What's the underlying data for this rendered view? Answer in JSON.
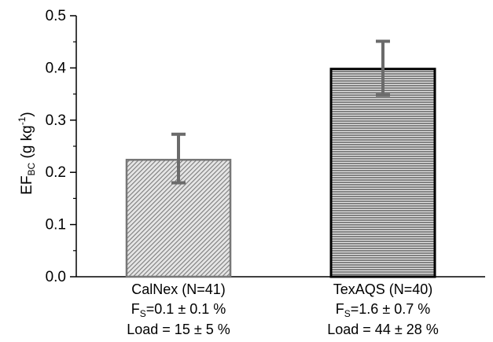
{
  "chart_data": {
    "type": "bar",
    "categories": [
      "CalNex (N=41)",
      "TexAQS (N=40)"
    ],
    "values": [
      0.224,
      0.398
    ],
    "error_upper": [
      0.273,
      0.451
    ],
    "error_lower": [
      0.18,
      0.348
    ],
    "bar_colors": [
      "#8a8a8a",
      "#4a4a4a"
    ],
    "bar_outline_colors": [
      "#777777",
      "#000000"
    ],
    "error_bar_color": "#6b6b6b",
    "category_sublabels": [
      [
        "F",
        "S",
        "=0.1 ± 0.1  %",
        "Load = 15 ± 5 %"
      ],
      [
        "F",
        "S",
        "=1.6 ± 0.7 %",
        "Load = 44 ± 28 %"
      ]
    ],
    "ylabel": {
      "main": "EF",
      "sub": "BC",
      "unit_open": " (g kg",
      "sup": "-1",
      "unit_close": ")"
    },
    "ylim": [
      0,
      0.5
    ],
    "yticks": [
      {
        "value": 0.0,
        "label": "0.0"
      },
      {
        "value": 0.1,
        "label": "0.1"
      },
      {
        "value": 0.2,
        "label": "0.2"
      },
      {
        "value": 0.3,
        "label": "0.3"
      },
      {
        "value": 0.4,
        "label": "0.4"
      },
      {
        "value": 0.5,
        "label": "0.5"
      }
    ],
    "grid": false
  }
}
